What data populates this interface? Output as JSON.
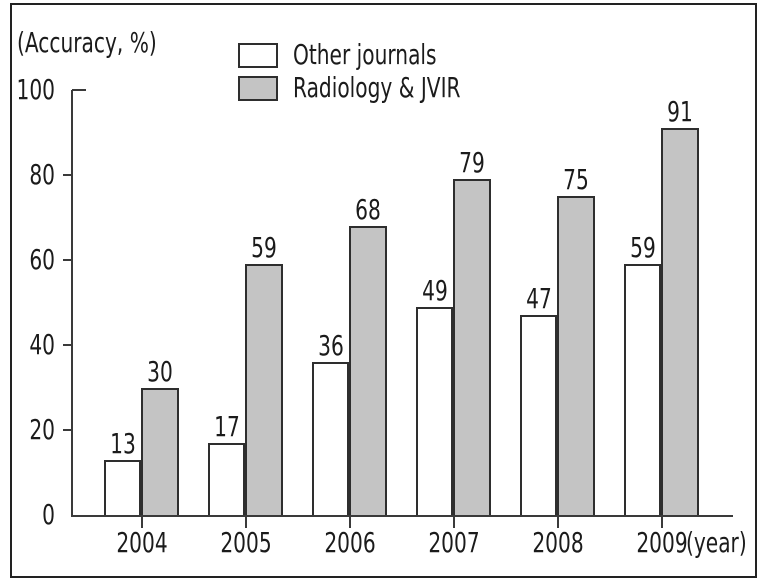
{
  "figure": {
    "y_axis_label": "(Accuracy, %)",
    "x_axis_suffix": "(year)"
  },
  "legend": {
    "items": [
      {
        "label": "Other journals",
        "swatch_color": "#ffffff"
      },
      {
        "label": "Radiology & JVIR",
        "swatch_color": "#c4c4c4"
      }
    ]
  },
  "chart_data": {
    "type": "bar",
    "title": "",
    "categories": [
      "2004",
      "2005",
      "2006",
      "2007",
      "2008",
      "2009"
    ],
    "series": [
      {
        "name": "Other journals",
        "color": "#ffffff",
        "values": [
          13,
          17,
          36,
          49,
          47,
          59
        ]
      },
      {
        "name": "Radiology & JVIR",
        "color": "#c4c4c4",
        "values": [
          30,
          59,
          68,
          79,
          75,
          91
        ]
      }
    ],
    "xlabel": "(year)",
    "ylabel": "(Accuracy, %)",
    "ylim": [
      0,
      100
    ],
    "yticks": [
      0,
      20,
      40,
      60,
      80,
      100
    ],
    "grid": false,
    "legend_position": "top-center",
    "value_labels": true
  },
  "colors": {
    "bar_other": "#ffffff",
    "bar_radiology": "#c4c4c4",
    "stroke": "#2e2e2e",
    "axis": "#3a3a3a",
    "text": "#1b1b1b",
    "frame": "#222222"
  }
}
